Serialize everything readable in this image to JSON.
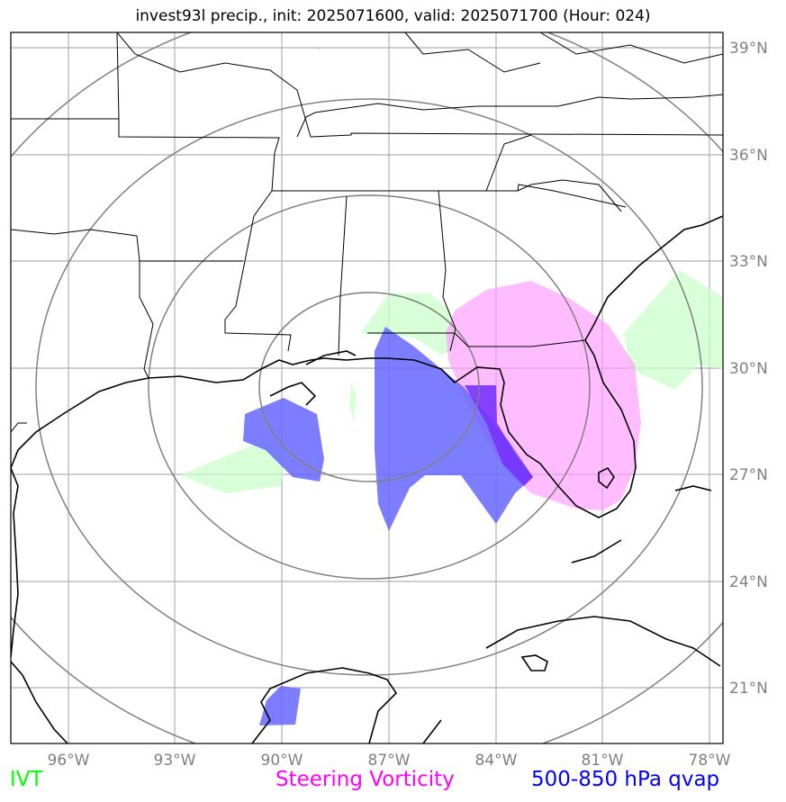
{
  "title": "invest93l precip., init: 2025071600, valid: 2025071700 (Hour: 024)",
  "lon_labels": [
    "96°W",
    "93°W",
    "90°W",
    "87°W",
    "84°W",
    "81°W",
    "78°W"
  ],
  "lat_labels": [
    "39°N",
    "36°N",
    "33°N",
    "30°N",
    "27°N",
    "24°N",
    "21°N"
  ],
  "legend": {
    "ivt": {
      "label": "IVT",
      "color": "#00ff00"
    },
    "vorticity": {
      "label": "Steering Vorticity",
      "color": "#ff00ff"
    },
    "qvap": {
      "label": "500-850 hPa qvap",
      "color": "#0000ff"
    }
  },
  "colors": {
    "ivt_fill": "#ccffcc",
    "vorticity_fill": "#ff99ff",
    "qvap_fill": "#6666ff",
    "range_rings": "#808080",
    "gridlines": "#b0b0b0",
    "coastline": "#000000"
  },
  "range_rings_count": 4
}
